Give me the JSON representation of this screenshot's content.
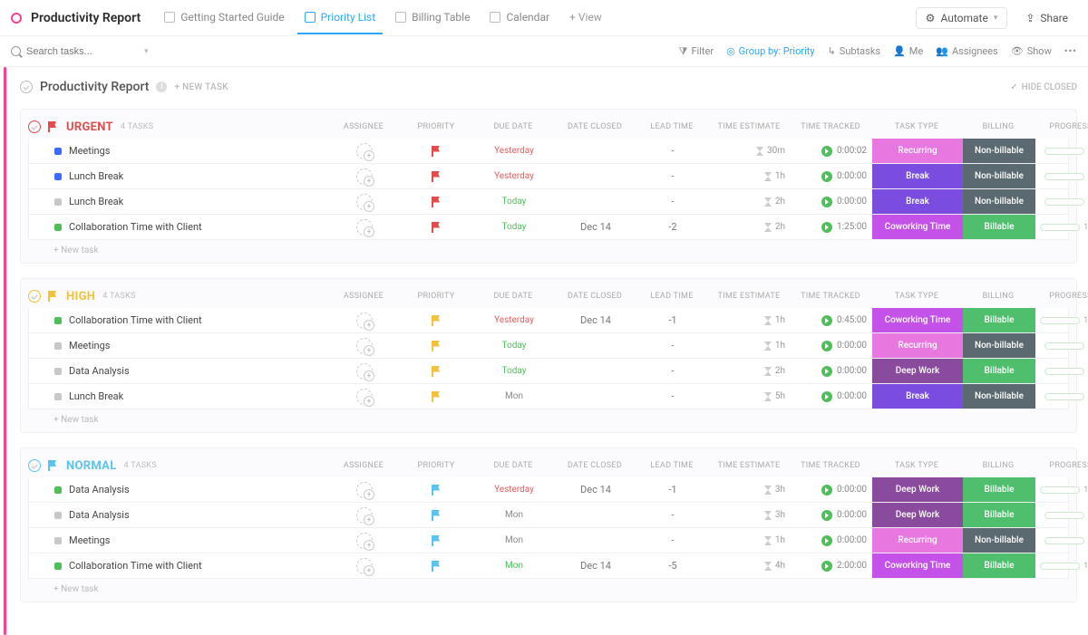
{
  "header": {
    "title": "Productivity Report",
    "tabs": [
      {
        "label": "Getting Started Guide"
      },
      {
        "label": "Priority List"
      },
      {
        "label": "Billing Table"
      },
      {
        "label": "Calendar"
      }
    ],
    "addView": "+ View",
    "automate": "Automate",
    "share": "Share"
  },
  "filters": {
    "searchPlaceholder": "Search tasks...",
    "filter": "Filter",
    "groupBy": "Group by: Priority",
    "subtasks": "Subtasks",
    "me": "Me",
    "assignees": "Assignees",
    "show": "Show"
  },
  "section": {
    "title": "Productivity Report",
    "newTask": "+ NEW TASK",
    "hideClosed": "HIDE CLOSED"
  },
  "columns": {
    "assignee": "ASSIGNEE",
    "priority": "PRIORITY",
    "dueDate": "DUE DATE",
    "dateClosed": "DATE CLOSED",
    "leadTime": "LEAD TIME",
    "timeEstimate": "TIME ESTIMATE",
    "timeTracked": "TIME TRACKED",
    "taskType": "TASK TYPE",
    "billing": "BILLING",
    "progress": "PROGRESS"
  },
  "colors": {
    "urgent": "#e44b4b",
    "high": "#f3c23b",
    "normal": "#5ac4f1",
    "coworking": "#c452e8",
    "recurring": "#e878e0",
    "break": "#7a4de0",
    "deepwork": "#8a4b9e",
    "billable": "#4fbf6e",
    "nonbillable": "#5a6a70",
    "statusBlue": "#3b6bff",
    "statusGray": "#c8c8c8",
    "statusGreen": "#4fbf5a"
  },
  "newTaskRow": "+ New task",
  "groups": [
    {
      "name": "URGENT",
      "count": "4 TASKS",
      "color": "#e44b4b",
      "tasks": [
        {
          "name": "Meetings",
          "status": "statusBlue",
          "due": "Yesterday",
          "dueClass": "red",
          "closed": "",
          "lead": "-",
          "est": "30m",
          "tracked": "0:00:02",
          "type": "Recurring",
          "typeColor": "recurring",
          "billing": "Non-billable",
          "billingColor": "nonbillable",
          "progress": 0
        },
        {
          "name": "Lunch Break",
          "status": "statusBlue",
          "due": "Yesterday",
          "dueClass": "red",
          "closed": "",
          "lead": "-",
          "est": "1h",
          "tracked": "0:00:00",
          "type": "Break",
          "typeColor": "break",
          "billing": "Non-billable",
          "billingColor": "nonbillable",
          "progress": 0
        },
        {
          "name": "Lunch Break",
          "status": "statusGray",
          "due": "Today",
          "dueClass": "green",
          "closed": "",
          "lead": "-",
          "est": "2h",
          "tracked": "0:00:00",
          "type": "Break",
          "typeColor": "break",
          "billing": "Non-billable",
          "billingColor": "nonbillable",
          "progress": 0
        },
        {
          "name": "Collaboration Time with Client",
          "status": "statusGreen",
          "due": "Today",
          "dueClass": "green",
          "closed": "Dec 14",
          "lead": "-2",
          "est": "2h",
          "tracked": "1:25:00",
          "type": "Coworking Time",
          "typeColor": "coworking",
          "billing": "Billable",
          "billingColor": "billable",
          "progress": 100
        }
      ]
    },
    {
      "name": "HIGH",
      "count": "4 TASKS",
      "color": "#f3c23b",
      "tasks": [
        {
          "name": "Collaboration Time with Client",
          "status": "statusGreen",
          "due": "Yesterday",
          "dueClass": "red",
          "closed": "Dec 14",
          "lead": "-1",
          "est": "1h",
          "tracked": "0:45:00",
          "type": "Coworking Time",
          "typeColor": "coworking",
          "billing": "Billable",
          "billingColor": "billable",
          "progress": 100
        },
        {
          "name": "Meetings",
          "status": "statusGray",
          "due": "Today",
          "dueClass": "green",
          "closed": "",
          "lead": "-",
          "est": "1h",
          "tracked": "0:00:00",
          "type": "Recurring",
          "typeColor": "recurring",
          "billing": "Non-billable",
          "billingColor": "nonbillable",
          "progress": 0
        },
        {
          "name": "Data Analysis",
          "status": "statusGray",
          "due": "Today",
          "dueClass": "green",
          "closed": "",
          "lead": "-",
          "est": "2h",
          "tracked": "0:00:00",
          "type": "Deep Work",
          "typeColor": "deepwork",
          "billing": "Billable",
          "billingColor": "billable",
          "progress": 0
        },
        {
          "name": "Lunch Break",
          "status": "statusGray",
          "due": "Mon",
          "dueClass": "gray",
          "closed": "",
          "lead": "-",
          "est": "5h",
          "tracked": "0:00:00",
          "type": "Break",
          "typeColor": "break",
          "billing": "Non-billable",
          "billingColor": "nonbillable",
          "progress": 0
        }
      ]
    },
    {
      "name": "NORMAL",
      "count": "4 TASKS",
      "color": "#5ac4f1",
      "tasks": [
        {
          "name": "Data Analysis",
          "status": "statusGreen",
          "due": "Yesterday",
          "dueClass": "red",
          "closed": "Dec 14",
          "lead": "-1",
          "est": "3h",
          "tracked": "0:00:00",
          "type": "Deep Work",
          "typeColor": "deepwork",
          "billing": "Billable",
          "billingColor": "billable",
          "progress": 100
        },
        {
          "name": "Data Analysis",
          "status": "statusGray",
          "due": "Mon",
          "dueClass": "gray",
          "closed": "",
          "lead": "-",
          "est": "3h",
          "tracked": "0:00:00",
          "type": "Deep Work",
          "typeColor": "deepwork",
          "billing": "Billable",
          "billingColor": "billable",
          "progress": 0
        },
        {
          "name": "Meetings",
          "status": "statusGray",
          "due": "Mon",
          "dueClass": "gray",
          "closed": "",
          "lead": "-",
          "est": "1h",
          "tracked": "0:00:00",
          "type": "Recurring",
          "typeColor": "recurring",
          "billing": "Non-billable",
          "billingColor": "nonbillable",
          "progress": 0
        },
        {
          "name": "Collaboration Time with Client",
          "status": "statusGreen",
          "due": "Mon",
          "dueClass": "green",
          "closed": "Dec 14",
          "lead": "-5",
          "est": "4h",
          "tracked": "2:00:00",
          "type": "Coworking Time",
          "typeColor": "coworking",
          "billing": "Billable",
          "billingColor": "billable",
          "progress": 100
        }
      ]
    }
  ]
}
